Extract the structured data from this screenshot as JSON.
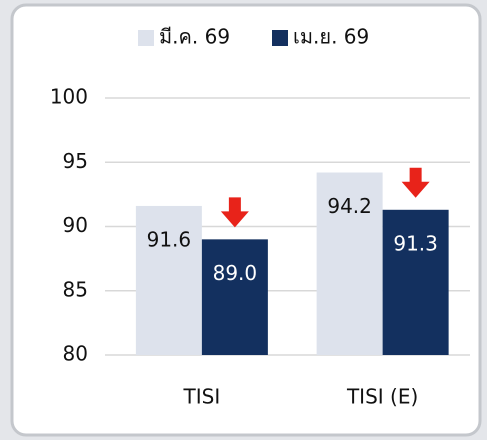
{
  "chart_data": {
    "type": "bar",
    "categories": [
      "TISI",
      "TISI (E)"
    ],
    "series": [
      {
        "name": "มี.ค. 69",
        "color": "#dde2ec",
        "values": [
          91.6,
          94.2
        ]
      },
      {
        "name": "เม.ย. 69",
        "color": "#13305f",
        "values": [
          89.0,
          91.3
        ],
        "value_labels": [
          "89.0",
          "91.3"
        ]
      }
    ],
    "ylim": [
      80,
      100
    ],
    "yticks": [
      80,
      85,
      90,
      95,
      100
    ],
    "grid": true,
    "legend": "top"
  }
}
